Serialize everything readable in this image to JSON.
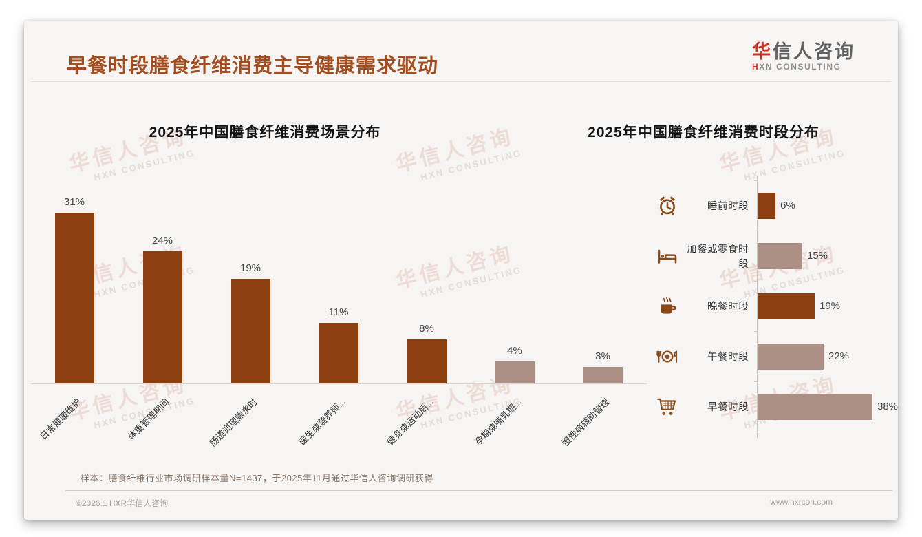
{
  "header": {
    "title": "早餐时段膳食纤维消费主导健康需求驱动",
    "logo": {
      "cn_first": "华",
      "cn_rest": "信人咨询",
      "en_first": "H",
      "en_rest": "XN CONSULTING"
    }
  },
  "watermark": {
    "line1": "华信人咨询",
    "line2": "HXN CONSULTING"
  },
  "footnote": "样本：膳食纤维行业市场调研样本量N=1437，于2025年11月通过华信人咨询调研获得",
  "footer": {
    "left": "©2026.1 HXR华信人咨询",
    "right": "www.hxrcon.com"
  },
  "colors": {
    "bar_dark": "#8B3E0F",
    "bar_light": "#AC9086",
    "title_text": "#A24E21",
    "logo_red": "#D22B22",
    "icon_brown": "#8A4A1A",
    "axis_line": "#CBC7C3"
  },
  "chart_data": [
    {
      "type": "bar",
      "orientation": "vertical",
      "title": "2025年中国膳食纤维消费场景分布",
      "categories": [
        "日常健康维护",
        "体重管理期间",
        "肠道调理需求时",
        "医生或营养师...",
        "健身或运动后...",
        "孕期或哺乳期...",
        "慢性病辅助管理"
      ],
      "values": [
        31,
        24,
        19,
        11,
        8,
        4,
        3
      ],
      "data_labels": [
        "31%",
        "24%",
        "19%",
        "11%",
        "8%",
        "4%",
        "3%"
      ],
      "bar_palette": [
        "dark",
        "dark",
        "dark",
        "dark",
        "dark",
        "light",
        "light"
      ],
      "unit": "percent",
      "ylim": [
        0,
        31
      ],
      "grid": false,
      "legend": false
    },
    {
      "type": "bar",
      "orientation": "horizontal",
      "title": "2025年中国膳食纤维消费时段分布",
      "categories": [
        "睡前时段",
        "加餐或零食时段",
        "晚餐时段",
        "午餐时段",
        "早餐时段"
      ],
      "values": [
        6,
        15,
        19,
        22,
        38
      ],
      "data_labels": [
        "6%",
        "15%",
        "19%",
        "22%",
        "38%"
      ],
      "icons": [
        "alarm-clock",
        "bed",
        "coffee-cup",
        "plate-cutlery",
        "shopping-cart"
      ],
      "bar_palette": [
        "dark",
        "light",
        "dark",
        "light",
        "light"
      ],
      "unit": "percent",
      "xlim": [
        0,
        40
      ],
      "grid": false,
      "legend": false
    }
  ]
}
